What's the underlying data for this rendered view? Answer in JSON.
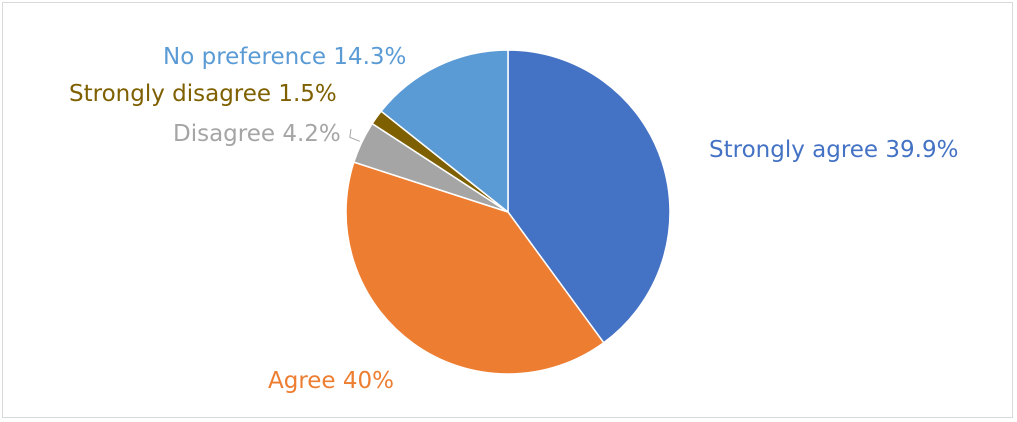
{
  "chart_data": {
    "type": "pie",
    "title": "",
    "slices": [
      {
        "label": "Strongly agree 39.9%",
        "value": 39.9,
        "color": "#4472c4"
      },
      {
        "label": "Agree 40%",
        "value": 40,
        "color": "#ed7d31"
      },
      {
        "label": "Disagree 4.2%",
        "value": 4.2,
        "color": "#a5a5a5"
      },
      {
        "label": "Strongly disagree 1.5%",
        "value": 1.5,
        "color": "#7f6000"
      },
      {
        "label": "No preference 14.3%",
        "value": 14.3,
        "color": "#5b9bd5"
      }
    ],
    "start_angle_deg": 0,
    "direction": "clockwise"
  }
}
